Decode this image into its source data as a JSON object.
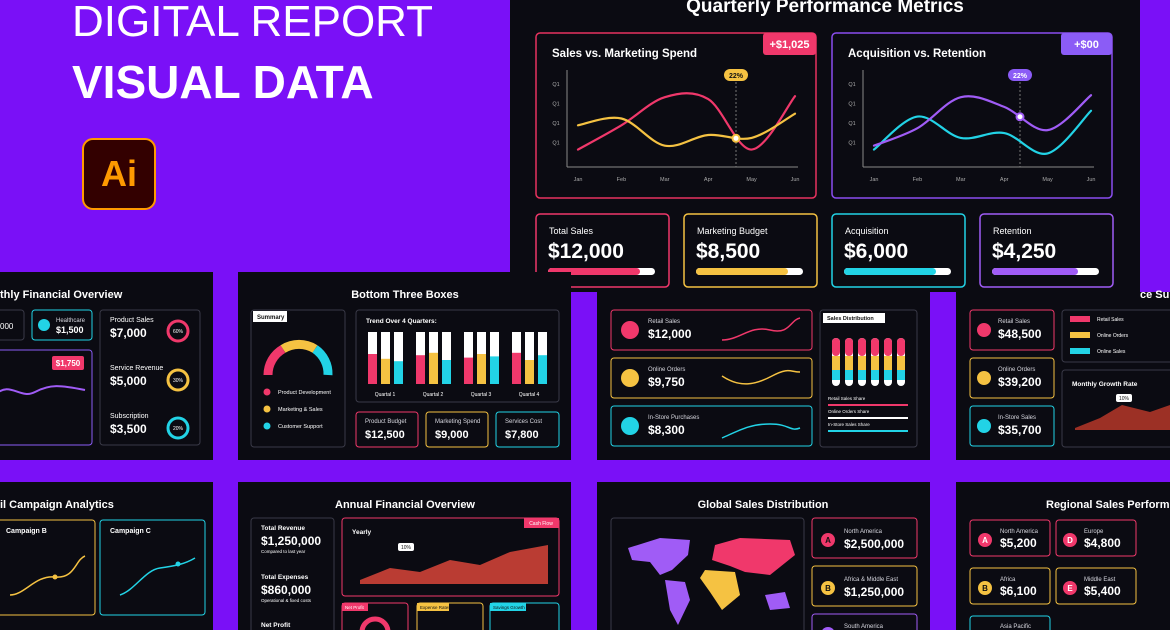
{
  "hero": {
    "title": "DIGITAL REPORT",
    "subtitle": "VISUAL DATA",
    "logo": "Ai"
  },
  "main": {
    "title": "Quarterly Performance Metrics",
    "charts": [
      {
        "type": "line",
        "title": "Sales vs. Marketing Spend",
        "badge": "+$1,025",
        "callout": "22%",
        "categories": [
          "Jan",
          "Feb",
          "Mar",
          "Apr",
          "May",
          "Jun"
        ],
        "y_labels": [
          "Q1",
          "Q1",
          "Q1",
          "Q1"
        ],
        "ylim": [
          0,
          100
        ],
        "series": [
          {
            "color": "#f0386b",
            "values": [
              18,
              43,
              72,
              70,
              18,
              73
            ]
          },
          {
            "color": "#f5c242",
            "values": [
              43,
              50,
              22,
              33,
              30,
              55
            ]
          }
        ]
      },
      {
        "type": "line",
        "title": "Acquisition vs. Retention",
        "badge": "+$00",
        "callout": "22%",
        "categories": [
          "Jan",
          "Feb",
          "Mar",
          "Apr",
          "May",
          "Jun"
        ],
        "y_labels": [
          "Q1",
          "Q1",
          "Q1",
          "Q1"
        ],
        "ylim": [
          0,
          100
        ],
        "series": [
          {
            "color": "#22d3e6",
            "values": [
              18,
              52,
              30,
              35,
              14,
              58
            ]
          },
          {
            "color": "#a05cf6",
            "values": [
              22,
              40,
              72,
              62,
              38,
              74
            ]
          }
        ]
      }
    ],
    "kpis": [
      {
        "label": "Total Sales",
        "value": "$12,000",
        "color": "#f0386b"
      },
      {
        "label": "Marketing Budget",
        "value": "$8,500",
        "color": "#f5c242"
      },
      {
        "label": "Acquisition",
        "value": "$6,000",
        "color": "#22d3e6"
      },
      {
        "label": "Retention",
        "value": "$4,250",
        "color": "#a05cf6"
      }
    ]
  },
  "thumbnails": [
    {
      "title": "thly Financial Overview",
      "texts": [
        "000",
        "Healthcare",
        "$1,500",
        "$1,750",
        "Product Sales",
        "$7,000",
        "Service Revenue",
        "$5,000",
        "Subscription",
        "$3,500",
        "60%",
        "30%",
        "20%"
      ]
    },
    {
      "title": "Bottom Three Boxes",
      "texts": [
        "Summary",
        "Trend Over 4 Quarters:",
        "Product Development",
        "Marketing & Sales",
        "Customer Support",
        "Quartal 1",
        "Quartal 2",
        "Quartal 3",
        "Quartal 4",
        "Product Budget",
        "$12,500",
        "Marketing Spend",
        "$9,000",
        "Services Cost",
        "$7,800"
      ]
    },
    {
      "title": "",
      "texts": [
        "Retail Sales",
        "$12,000",
        "Online Orders",
        "$9,750",
        "In-Store Purchases",
        "$8,300",
        "Sales Distribution",
        "Retail Sales Share",
        "Online Orders Share",
        "In-Store Sales Share"
      ]
    },
    {
      "title": "ce Sum",
      "texts": [
        "Retail Sales",
        "$48,500",
        "Online Orders",
        "$39,200",
        "In-Store Sales",
        "$35,700",
        "Retail Sales",
        "Online Orders",
        "Online Sales",
        "Monthly Growth Rate",
        "10%"
      ]
    },
    {
      "title": "il Campaign Analytics",
      "texts": [
        "Campaign B",
        "Campaign C"
      ]
    },
    {
      "title": "Annual Financial Overview",
      "texts": [
        "Total Revenue",
        "$1,250,000",
        "Compared to last year",
        "Total Expenses",
        "$860,000",
        "Operational & fixed costs",
        "Net Profit",
        "Yearly",
        "Cash Flow",
        "10%",
        "Net Profit",
        "Expense Rates",
        "Savings Growth"
      ]
    },
    {
      "title": "Global Sales Distribution",
      "texts": [
        "North America",
        "$2,500,000",
        "A",
        "Africa & Middle East",
        "$1,250,000",
        "B",
        "South America"
      ]
    },
    {
      "title": "Regional Sales Perform",
      "texts": [
        "North America",
        "$5,200",
        "A",
        "Europe",
        "$4,800",
        "D",
        "Africa",
        "$6,100",
        "B",
        "Middle East",
        "$5,400",
        "E",
        "Asia Pacific"
      ]
    }
  ]
}
